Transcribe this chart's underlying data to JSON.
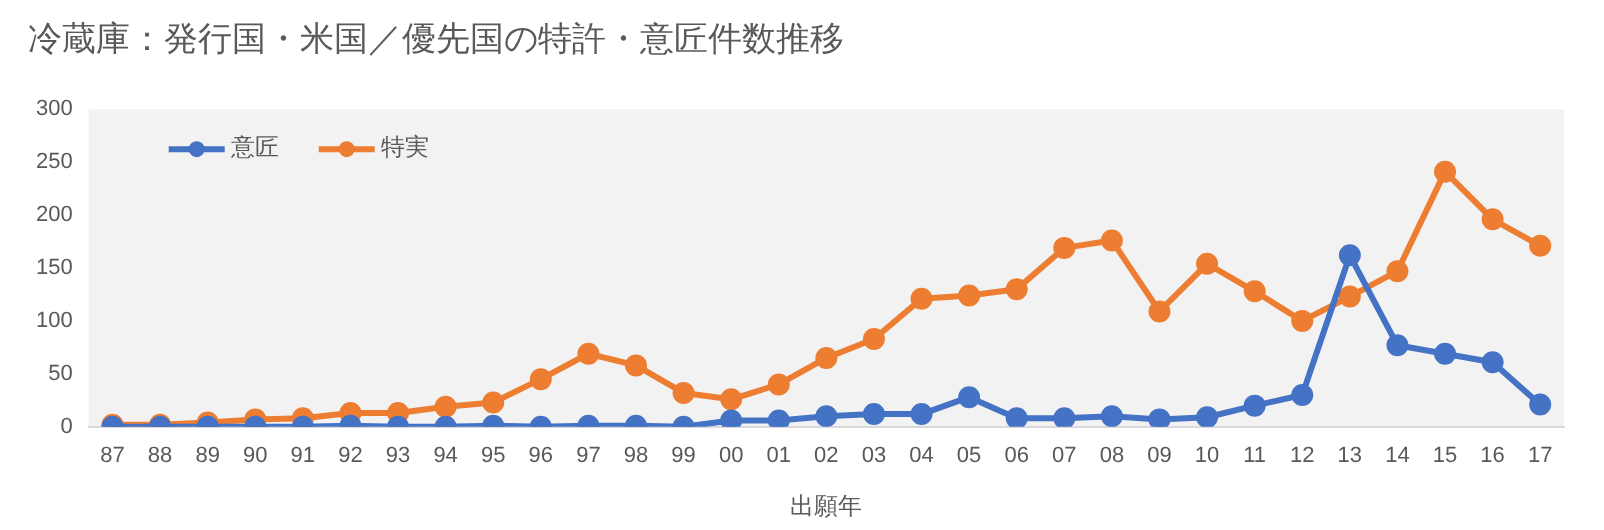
{
  "chart_data": {
    "type": "line",
    "title": "冷蔵庫：発行国・米国／優先国の特許・意匠件数推移",
    "xlabel": "出願年",
    "categories": [
      "87",
      "88",
      "89",
      "90",
      "91",
      "92",
      "93",
      "94",
      "95",
      "96",
      "97",
      "98",
      "99",
      "00",
      "01",
      "02",
      "03",
      "04",
      "05",
      "06",
      "07",
      "08",
      "09",
      "10",
      "11",
      "12",
      "13",
      "14",
      "15",
      "16",
      "17"
    ],
    "series": [
      {
        "name": "意匠",
        "color": "#4472c4",
        "values": [
          0,
          0,
          0,
          0,
          0,
          1,
          0,
          0,
          1,
          0,
          1,
          1,
          0,
          6,
          6,
          10,
          12,
          12,
          28,
          8,
          8,
          10,
          7,
          9,
          20,
          30,
          162,
          77,
          69,
          61,
          21
        ]
      },
      {
        "name": "特実",
        "color": "#ed7d31",
        "values": [
          2,
          2,
          4,
          7,
          8,
          13,
          13,
          19,
          23,
          45,
          69,
          58,
          32,
          26,
          40,
          65,
          83,
          121,
          124,
          130,
          169,
          176,
          109,
          154,
          128,
          100,
          123,
          147,
          241,
          196,
          171
        ]
      }
    ],
    "ylim": [
      0,
      300
    ],
    "yticks": [
      0,
      50,
      100,
      150,
      200,
      250,
      300
    ],
    "grid": false,
    "legend": "top left",
    "marker": "circle",
    "line_style": "solid"
  }
}
